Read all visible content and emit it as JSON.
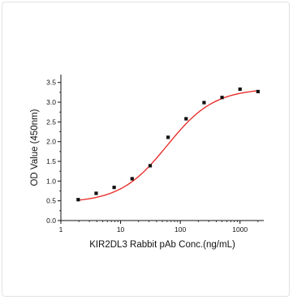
{
  "chart_data": {
    "type": "scatter",
    "title": "",
    "xlabel": "KIR2DL3 Rabbit pAb Conc.(ng/mL)",
    "ylabel": "OD Value (450nm)",
    "x_scale": "log",
    "xlim": [
      1,
      2500
    ],
    "ylim": [
      0,
      3.7
    ],
    "x_ticks": [
      1,
      10,
      100,
      1000
    ],
    "x_tick_labels": [
      "1",
      "10",
      "100",
      "1000"
    ],
    "y_ticks": [
      0.0,
      0.5,
      1.0,
      1.5,
      2.0,
      2.5,
      3.0,
      3.5
    ],
    "y_tick_labels": [
      "0.0",
      "0.5",
      "1.0",
      "1.5",
      "2.0",
      "2.5",
      "3.0",
      "3.5"
    ],
    "grid": false,
    "series": [
      {
        "type": "scatter",
        "marker": "square",
        "color": "#111111",
        "x": [
          1.95,
          3.9,
          7.8,
          15.6,
          31.25,
          62.5,
          125,
          250,
          500,
          1000,
          2000
        ],
        "y": [
          0.53,
          0.69,
          0.84,
          1.06,
          1.39,
          2.11,
          2.58,
          2.99,
          3.12,
          3.33,
          3.27
        ]
      },
      {
        "type": "line",
        "fit": "4PL",
        "color": "#e8231f",
        "bottom": 0.45,
        "top": 3.35,
        "ec50": 60,
        "hill": 1.1,
        "x_range": [
          1.95,
          2000
        ]
      }
    ]
  }
}
